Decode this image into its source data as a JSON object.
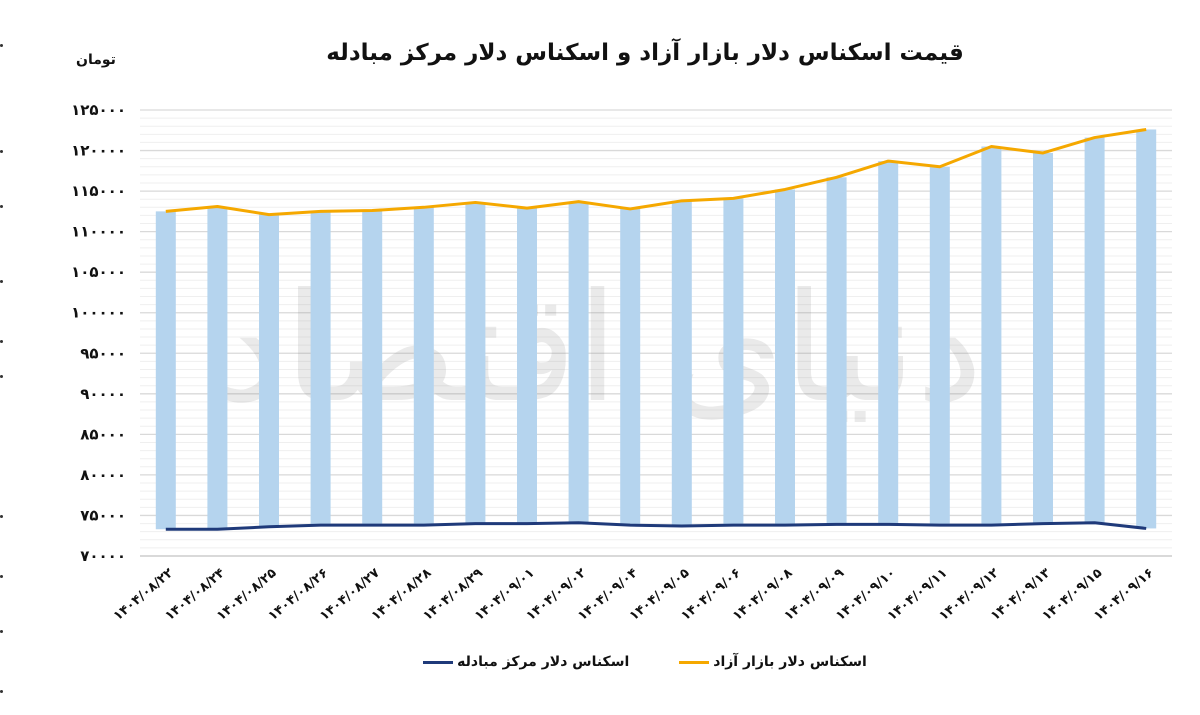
{
  "header": {
    "title": "قیمت اسکناس دلار بازار آزاد و اسکناس دلار مرکز مبادله",
    "unit_label": "تومان"
  },
  "legend": {
    "items": [
      {
        "label": "اسکناس دلار بازار آزاد",
        "color": "#f5a800"
      },
      {
        "label": "اسکناس دلار مرکز مبادله",
        "color": "#1f3a7a"
      }
    ]
  },
  "watermark": {
    "text": "دنیای اقتصاد"
  },
  "colors": {
    "free_market_line": "#f5a800",
    "exchange_center_line": "#1f3a7a",
    "gap_bar": "#b5d4ee",
    "gridline_major": "#d9d9d9",
    "gridline_minor": "#efefef"
  },
  "chart_data": {
    "type": "line",
    "title": "قیمت اسکناس دلار بازار آزاد و اسکناس دلار مرکز مبادله",
    "xlabel": "",
    "ylabel": "تومان",
    "ylim": [
      70000,
      125000
    ],
    "y_ticks": [
      70000,
      75000,
      80000,
      85000,
      90000,
      95000,
      100000,
      105000,
      110000,
      115000,
      120000,
      125000
    ],
    "y_tick_labels": [
      "۷۰۰۰۰",
      "۷۵۰۰۰",
      "۸۰۰۰۰",
      "۸۵۰۰۰",
      "۹۰۰۰۰",
      "۹۵۰۰۰",
      "۱۰۰۰۰۰",
      "۱۰۵۰۰۰",
      "۱۱۰۰۰۰",
      "۱۱۵۰۰۰",
      "۱۲۰۰۰۰",
      "۱۲۵۰۰۰"
    ],
    "grid": true,
    "legend_position": "bottom",
    "categories": [
      "۱۴۰۴/۰۸/۲۲",
      "۱۴۰۴/۰۸/۲۴",
      "۱۴۰۴/۰۸/۲۵",
      "۱۴۰۴/۰۸/۲۶",
      "۱۴۰۴/۰۸/۲۷",
      "۱۴۰۴/۰۸/۲۸",
      "۱۴۰۴/۰۸/۲۹",
      "۱۴۰۴/۰۹/۰۱",
      "۱۴۰۴/۰۹/۰۲",
      "۱۴۰۴/۰۹/۰۴",
      "۱۴۰۴/۰۹/۰۵",
      "۱۴۰۴/۰۹/۰۶",
      "۱۴۰۴/۰۹/۰۸",
      "۱۴۰۴/۰۹/۰۹",
      "۱۴۰۴/۰۹/۱۰",
      "۱۴۰۴/۰۹/۱۱",
      "۱۴۰۴/۰۹/۱۲",
      "۱۴۰۴/۰۹/۱۳",
      "۱۴۰۴/۰۹/۱۵",
      "۱۴۰۴/۰۹/۱۶"
    ],
    "series": [
      {
        "name": "اسکناس دلار بازار آزاد",
        "type": "line",
        "color": "#f5a800",
        "values": [
          112500,
          113100,
          112100,
          112500,
          112600,
          113000,
          113600,
          112900,
          113700,
          112800,
          113800,
          114100,
          115200,
          116700,
          118700,
          118000,
          120500,
          119700,
          121600,
          122600
        ]
      },
      {
        "name": "اسکناس دلار مرکز مبادله",
        "type": "line",
        "color": "#1f3a7a",
        "values": [
          73300,
          73300,
          73600,
          73800,
          73800,
          73800,
          74000,
          74000,
          74100,
          73800,
          73700,
          73800,
          73800,
          73900,
          73900,
          73800,
          73800,
          74000,
          74100,
          73400
        ]
      },
      {
        "name": "gap",
        "type": "floating-bar",
        "color": "#b5d4ee",
        "note": "bars span from exchange-center value to free-market value for each date"
      }
    ]
  }
}
